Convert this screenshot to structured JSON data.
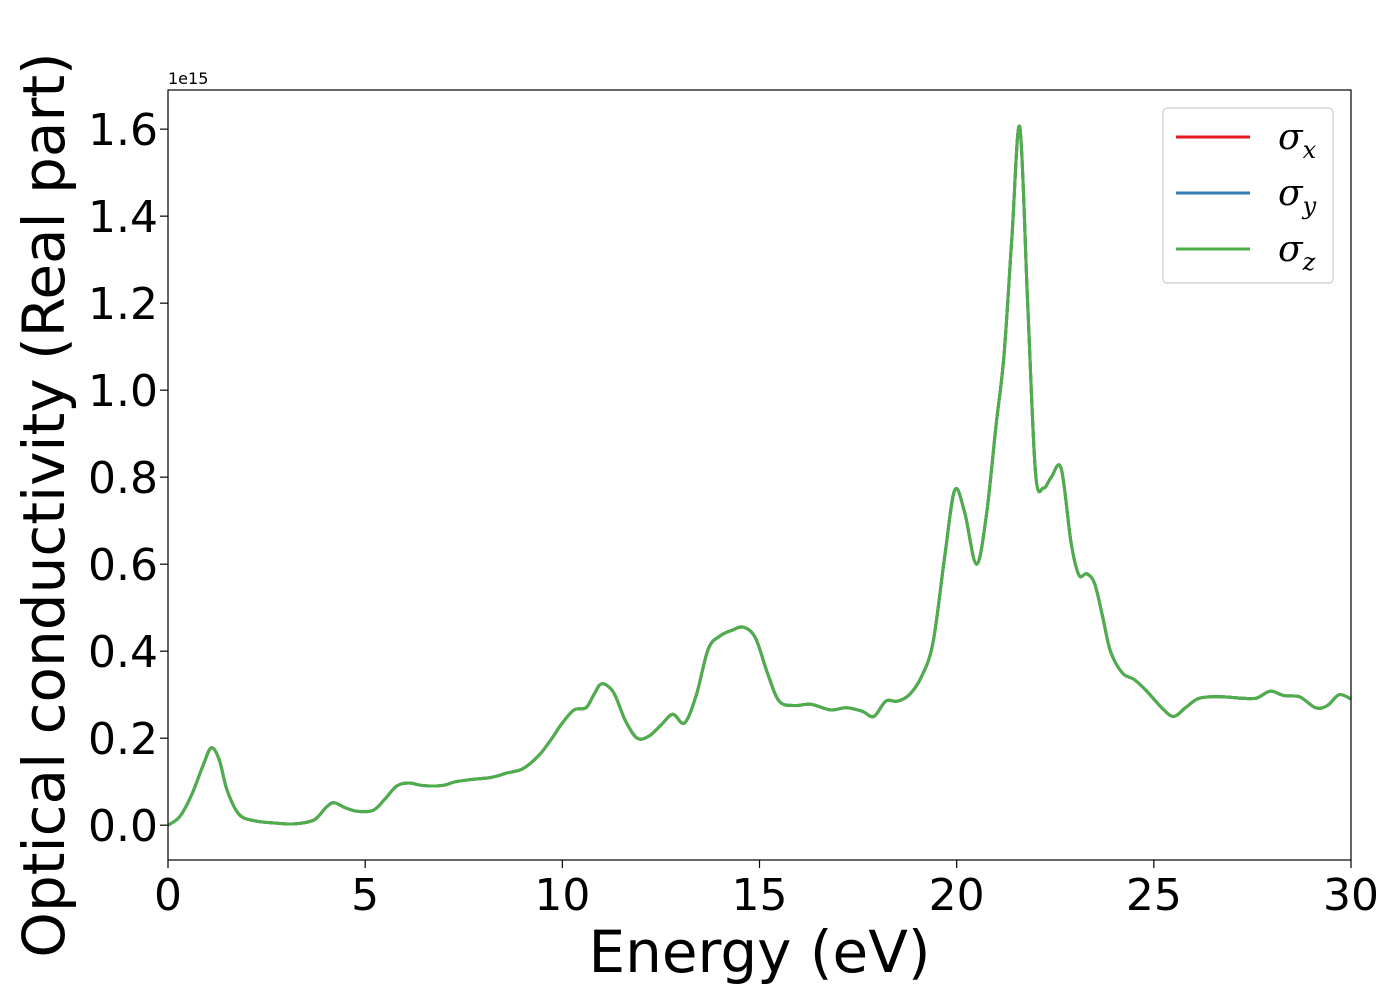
{
  "chart_data": {
    "type": "line",
    "title": "",
    "xlabel": "Energy (eV)",
    "ylabel": "Optical conductivity (Real part)",
    "y_offset_text": "1e15",
    "xlim": [
      0,
      30
    ],
    "ylim": [
      -0.08,
      1.69
    ],
    "x_ticks": [
      0,
      5,
      10,
      15,
      20,
      25,
      30
    ],
    "y_ticks": [
      0.0,
      0.2,
      0.4,
      0.6,
      0.8,
      1.0,
      1.2,
      1.4,
      1.6
    ],
    "y_tick_labels": [
      "0.0",
      "0.2",
      "0.4",
      "0.6",
      "0.8",
      "1.0",
      "1.2",
      "1.4",
      "1.6"
    ],
    "grid": false,
    "legend_position": "top-right",
    "x": [
      0,
      0.3,
      0.6,
      0.9,
      1.1,
      1.3,
      1.5,
      1.8,
      2.2,
      2.7,
      3.2,
      3.7,
      4.0,
      4.2,
      4.5,
      4.8,
      5.2,
      5.5,
      5.8,
      6.1,
      6.4,
      6.7,
      7.0,
      7.3,
      7.7,
      8.2,
      8.6,
      9.0,
      9.4,
      9.7,
      10.0,
      10.3,
      10.6,
      10.8,
      11.0,
      11.3,
      11.6,
      11.9,
      12.2,
      12.5,
      12.8,
      13.1,
      13.4,
      13.7,
      14.0,
      14.3,
      14.6,
      14.9,
      15.2,
      15.5,
      15.9,
      16.3,
      16.8,
      17.2,
      17.6,
      17.9,
      18.2,
      18.5,
      18.8,
      19.1,
      19.4,
      19.7,
      19.95,
      20.2,
      20.5,
      20.75,
      21.0,
      21.2,
      21.4,
      21.6,
      21.8,
      22.0,
      22.2,
      22.4,
      22.65,
      22.9,
      23.1,
      23.3,
      23.5,
      23.7,
      23.9,
      24.2,
      24.5,
      24.8,
      25.2,
      25.5,
      25.8,
      26.1,
      26.4,
      26.8,
      27.2,
      27.6,
      27.95,
      28.3,
      28.7,
      29.1,
      29.4,
      29.7,
      30.0
    ],
    "series": [
      {
        "name": "σx",
        "color": "#e41a1c",
        "values": [
          0.0,
          0.02,
          0.07,
          0.14,
          0.178,
          0.15,
          0.08,
          0.025,
          0.01,
          0.005,
          0.003,
          0.012,
          0.04,
          0.052,
          0.04,
          0.032,
          0.034,
          0.06,
          0.09,
          0.097,
          0.092,
          0.09,
          0.092,
          0.1,
          0.105,
          0.11,
          0.12,
          0.13,
          0.16,
          0.195,
          0.235,
          0.265,
          0.27,
          0.3,
          0.325,
          0.305,
          0.24,
          0.2,
          0.205,
          0.23,
          0.255,
          0.235,
          0.3,
          0.405,
          0.435,
          0.448,
          0.455,
          0.43,
          0.35,
          0.285,
          0.275,
          0.278,
          0.265,
          0.27,
          0.262,
          0.25,
          0.285,
          0.285,
          0.3,
          0.34,
          0.42,
          0.62,
          0.77,
          0.72,
          0.6,
          0.71,
          0.92,
          1.08,
          1.35,
          1.605,
          1.2,
          0.81,
          0.775,
          0.8,
          0.82,
          0.65,
          0.575,
          0.578,
          0.555,
          0.48,
          0.4,
          0.35,
          0.335,
          0.31,
          0.27,
          0.25,
          0.27,
          0.29,
          0.295,
          0.295,
          0.292,
          0.292,
          0.308,
          0.298,
          0.295,
          0.27,
          0.275,
          0.3,
          0.29
        ]
      },
      {
        "name": "σy",
        "color": "#377eb8",
        "values": [
          0.0,
          0.02,
          0.07,
          0.14,
          0.178,
          0.15,
          0.08,
          0.025,
          0.01,
          0.005,
          0.003,
          0.012,
          0.04,
          0.052,
          0.04,
          0.032,
          0.034,
          0.06,
          0.09,
          0.097,
          0.092,
          0.09,
          0.092,
          0.1,
          0.105,
          0.11,
          0.12,
          0.13,
          0.16,
          0.195,
          0.235,
          0.265,
          0.27,
          0.3,
          0.325,
          0.305,
          0.24,
          0.2,
          0.205,
          0.23,
          0.255,
          0.235,
          0.3,
          0.405,
          0.435,
          0.448,
          0.455,
          0.43,
          0.35,
          0.285,
          0.275,
          0.278,
          0.265,
          0.27,
          0.262,
          0.25,
          0.285,
          0.285,
          0.3,
          0.34,
          0.42,
          0.62,
          0.77,
          0.72,
          0.6,
          0.71,
          0.92,
          1.08,
          1.35,
          1.605,
          1.2,
          0.81,
          0.775,
          0.8,
          0.82,
          0.65,
          0.575,
          0.578,
          0.555,
          0.48,
          0.4,
          0.35,
          0.335,
          0.31,
          0.27,
          0.25,
          0.27,
          0.29,
          0.295,
          0.295,
          0.292,
          0.292,
          0.308,
          0.298,
          0.295,
          0.27,
          0.275,
          0.3,
          0.29
        ]
      },
      {
        "name": "σz",
        "color": "#4daf4a",
        "values": [
          0.0,
          0.02,
          0.07,
          0.14,
          0.178,
          0.15,
          0.08,
          0.025,
          0.01,
          0.005,
          0.003,
          0.012,
          0.04,
          0.052,
          0.04,
          0.032,
          0.034,
          0.06,
          0.09,
          0.097,
          0.092,
          0.09,
          0.092,
          0.1,
          0.105,
          0.11,
          0.12,
          0.13,
          0.16,
          0.195,
          0.235,
          0.265,
          0.27,
          0.3,
          0.325,
          0.305,
          0.24,
          0.2,
          0.205,
          0.23,
          0.255,
          0.235,
          0.3,
          0.405,
          0.435,
          0.448,
          0.455,
          0.43,
          0.35,
          0.285,
          0.275,
          0.278,
          0.265,
          0.27,
          0.262,
          0.25,
          0.285,
          0.285,
          0.3,
          0.34,
          0.42,
          0.62,
          0.77,
          0.72,
          0.6,
          0.71,
          0.92,
          1.08,
          1.35,
          1.605,
          1.2,
          0.81,
          0.775,
          0.8,
          0.82,
          0.65,
          0.575,
          0.578,
          0.555,
          0.48,
          0.4,
          0.35,
          0.335,
          0.31,
          0.27,
          0.25,
          0.27,
          0.29,
          0.295,
          0.295,
          0.292,
          0.292,
          0.308,
          0.298,
          0.295,
          0.27,
          0.275,
          0.3,
          0.29
        ]
      }
    ],
    "legend": [
      {
        "symbol": "σ",
        "sub": "x"
      },
      {
        "symbol": "σ",
        "sub": "y"
      },
      {
        "symbol": "σ",
        "sub": "z"
      }
    ]
  }
}
